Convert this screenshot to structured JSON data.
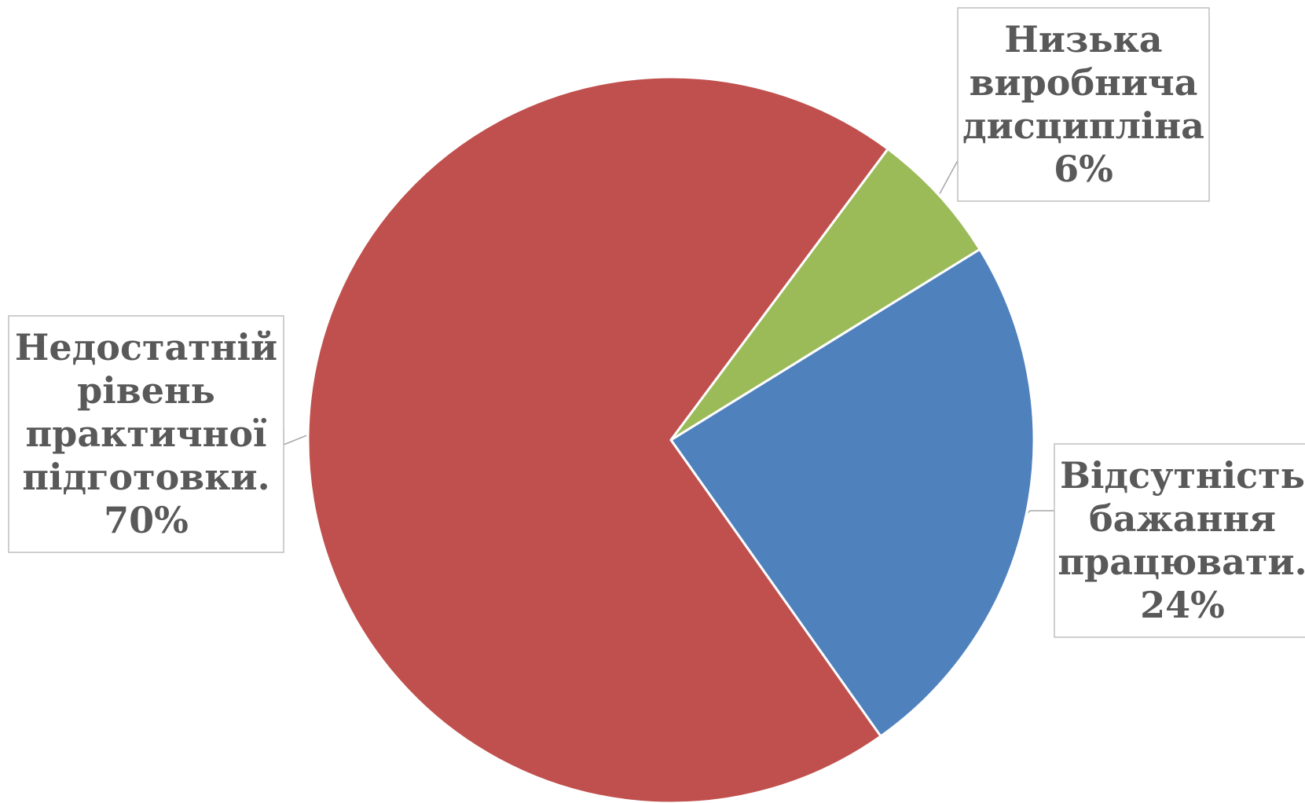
{
  "chart_data": {
    "type": "pie",
    "title": "",
    "slices": [
      {
        "label_lines": [
          "Відсутність",
          "бажання",
          "працювати."
        ],
        "value": 24,
        "value_label": "24%",
        "color": "#4f81bd"
      },
      {
        "label_lines": [
          "Недостатній",
          "рівень",
          "практичної",
          "підготовки."
        ],
        "value": 70,
        "value_label": "70%",
        "color": "#c0504d"
      },
      {
        "label_lines": [
          "Низька",
          "виробнича",
          "дисципліна"
        ],
        "value": 6,
        "value_label": "6%",
        "color": "#9bbb59"
      }
    ],
    "legend": "none",
    "data_labels": "outside-with-leader-lines"
  }
}
